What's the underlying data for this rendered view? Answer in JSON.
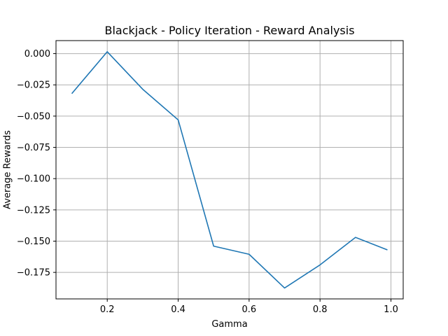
{
  "chart_data": {
    "type": "line",
    "title": "Blackjack - Policy Iteration - Reward Analysis",
    "xlabel": "Gamma",
    "ylabel": "Average Rewards",
    "xlim": [
      0.0555,
      1.0345
    ],
    "ylim": [
      -0.1962,
      0.0104
    ],
    "grid": true,
    "legend": "none",
    "x_ticks": [
      0.2,
      0.4,
      0.6,
      0.8,
      1.0
    ],
    "x_tick_labels": [
      "0.2",
      "0.4",
      "0.6",
      "0.8",
      "1.0"
    ],
    "y_ticks": [
      0.0,
      -0.025,
      -0.05,
      -0.075,
      -0.1,
      -0.125,
      -0.15,
      -0.175
    ],
    "y_tick_labels": [
      "0.000",
      "−0.025",
      "−0.050",
      "−0.075",
      "−0.100",
      "−0.125",
      "−0.150",
      "−0.175"
    ],
    "series": [
      {
        "color": "#1f77b4",
        "x": [
          0.1,
          0.2,
          0.3,
          0.4,
          0.5,
          0.6,
          0.7,
          0.8,
          0.9,
          0.99
        ],
        "y": [
          -0.032,
          0.0015,
          -0.0285,
          -0.053,
          -0.154,
          -0.1605,
          -0.1875,
          -0.169,
          -0.147,
          -0.157
        ]
      }
    ]
  }
}
